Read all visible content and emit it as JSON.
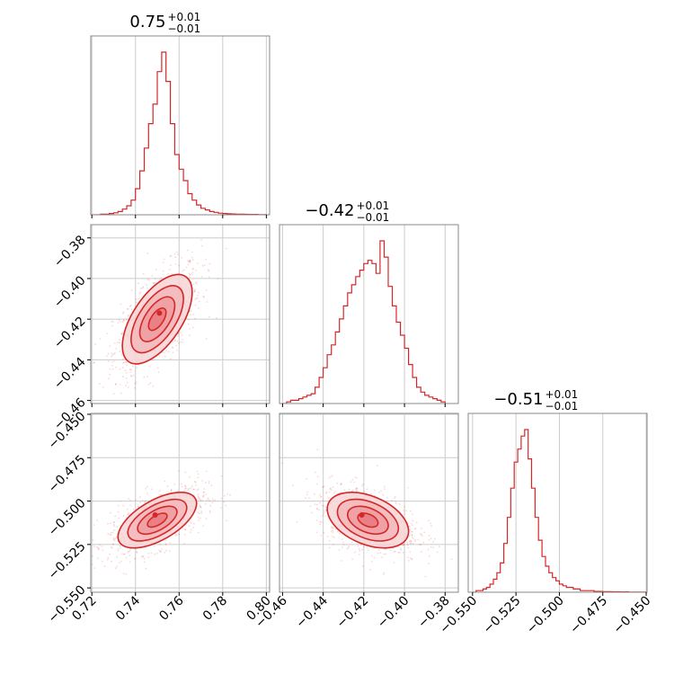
{
  "chart_data": {
    "type": "corner",
    "color": "#d62728",
    "fill_colors": [
      "#f6d3d4",
      "#ef9fa3"
    ],
    "grid": true,
    "parameters": [
      {
        "title": {
          "median": "0.75",
          "upper": "+0.01",
          "lower": "−0.01"
        },
        "ticks": [
          0.72,
          0.74,
          0.76,
          0.78,
          0.8
        ],
        "tick_labels": [
          "0.72",
          "0.74",
          "0.76",
          "0.78",
          "0.80"
        ],
        "range": [
          0.7195,
          0.8015
        ],
        "hist": [
          [
            0.72,
            0.0
          ],
          [
            0.722,
            0.0
          ],
          [
            0.724,
            0.004
          ],
          [
            0.726,
            0.004
          ],
          [
            0.728,
            0.008
          ],
          [
            0.73,
            0.012
          ],
          [
            0.732,
            0.02
          ],
          [
            0.734,
            0.035
          ],
          [
            0.736,
            0.055
          ],
          [
            0.738,
            0.09
          ],
          [
            0.74,
            0.16
          ],
          [
            0.742,
            0.27
          ],
          [
            0.744,
            0.41
          ],
          [
            0.746,
            0.56
          ],
          [
            0.748,
            0.68
          ],
          [
            0.75,
            0.88
          ],
          [
            0.752,
            1.0
          ],
          [
            0.754,
            0.82
          ],
          [
            0.756,
            0.56
          ],
          [
            0.758,
            0.37
          ],
          [
            0.76,
            0.28
          ],
          [
            0.762,
            0.21
          ],
          [
            0.764,
            0.13
          ],
          [
            0.766,
            0.09
          ],
          [
            0.768,
            0.06
          ],
          [
            0.77,
            0.04
          ],
          [
            0.772,
            0.03
          ],
          [
            0.774,
            0.02
          ],
          [
            0.776,
            0.015
          ],
          [
            0.778,
            0.01
          ],
          [
            0.78,
            0.008
          ],
          [
            0.782,
            0.006
          ],
          [
            0.784,
            0.005
          ],
          [
            0.786,
            0.004
          ],
          [
            0.788,
            0.004
          ],
          [
            0.79,
            0.003
          ],
          [
            0.792,
            0.002
          ],
          [
            0.794,
            0.002
          ],
          [
            0.796,
            0.001
          ],
          [
            0.798,
            0.001
          ],
          [
            0.8,
            0.0
          ]
        ]
      },
      {
        "title": {
          "median": "−0.42",
          "upper": "+0.01",
          "lower": "−0.01"
        },
        "ticks": [
          -0.46,
          -0.44,
          -0.42,
          -0.4,
          -0.38
        ],
        "tick_labels": [
          "−0.46",
          "−0.44",
          "−0.42",
          "−0.40",
          "−0.38"
        ],
        "range": [
          -0.4615,
          -0.3735
        ],
        "hist": [
          [
            -0.46,
            0.0
          ],
          [
            -0.458,
            0.01
          ],
          [
            -0.456,
            0.02
          ],
          [
            -0.454,
            0.02
          ],
          [
            -0.452,
            0.03
          ],
          [
            -0.45,
            0.04
          ],
          [
            -0.448,
            0.05
          ],
          [
            -0.446,
            0.06
          ],
          [
            -0.444,
            0.1
          ],
          [
            -0.442,
            0.16
          ],
          [
            -0.44,
            0.22
          ],
          [
            -0.438,
            0.3
          ],
          [
            -0.436,
            0.36
          ],
          [
            -0.434,
            0.44
          ],
          [
            -0.432,
            0.52
          ],
          [
            -0.43,
            0.6
          ],
          [
            -0.428,
            0.68
          ],
          [
            -0.426,
            0.73
          ],
          [
            -0.424,
            0.78
          ],
          [
            -0.422,
            0.82
          ],
          [
            -0.42,
            0.86
          ],
          [
            -0.418,
            0.88
          ],
          [
            -0.416,
            0.86
          ],
          [
            -0.414,
            0.8
          ],
          [
            -0.412,
            1.0
          ],
          [
            -0.41,
            0.9
          ],
          [
            -0.408,
            0.72
          ],
          [
            -0.406,
            0.6
          ],
          [
            -0.404,
            0.5
          ],
          [
            -0.402,
            0.42
          ],
          [
            -0.4,
            0.34
          ],
          [
            -0.398,
            0.24
          ],
          [
            -0.396,
            0.16
          ],
          [
            -0.394,
            0.1
          ],
          [
            -0.392,
            0.07
          ],
          [
            -0.39,
            0.05
          ],
          [
            -0.388,
            0.04
          ],
          [
            -0.386,
            0.03
          ],
          [
            -0.384,
            0.02
          ],
          [
            -0.382,
            0.01
          ],
          [
            -0.38,
            0.0
          ]
        ]
      },
      {
        "title": {
          "median": "−0.51",
          "upper": "+0.01",
          "lower": "−0.01"
        },
        "ticks": [
          -0.55,
          -0.525,
          -0.5,
          -0.475,
          -0.45
        ],
        "tick_labels": [
          "−0.550",
          "−0.525",
          "−0.500",
          "−0.475",
          "−0.450"
        ],
        "range": [
          -0.5525,
          -0.4495
        ],
        "hist": [
          [
            -0.55,
            0.0
          ],
          [
            -0.548,
            0.01
          ],
          [
            -0.546,
            0.01
          ],
          [
            -0.544,
            0.02
          ],
          [
            -0.542,
            0.03
          ],
          [
            -0.54,
            0.05
          ],
          [
            -0.538,
            0.08
          ],
          [
            -0.536,
            0.12
          ],
          [
            -0.534,
            0.18
          ],
          [
            -0.532,
            0.3
          ],
          [
            -0.53,
            0.46
          ],
          [
            -0.528,
            0.64
          ],
          [
            -0.526,
            0.8
          ],
          [
            -0.524,
            0.88
          ],
          [
            -0.522,
            0.96
          ],
          [
            -0.52,
            1.0
          ],
          [
            -0.518,
            0.82
          ],
          [
            -0.516,
            0.64
          ],
          [
            -0.514,
            0.46
          ],
          [
            -0.512,
            0.32
          ],
          [
            -0.51,
            0.22
          ],
          [
            -0.508,
            0.16
          ],
          [
            -0.506,
            0.12
          ],
          [
            -0.504,
            0.09
          ],
          [
            -0.502,
            0.07
          ],
          [
            -0.5,
            0.05
          ],
          [
            -0.498,
            0.04
          ],
          [
            -0.496,
            0.03
          ],
          [
            -0.494,
            0.03
          ],
          [
            -0.492,
            0.02
          ],
          [
            -0.49,
            0.02
          ],
          [
            -0.488,
            0.01
          ],
          [
            -0.486,
            0.01
          ],
          [
            -0.484,
            0.01
          ],
          [
            -0.482,
            0.01
          ],
          [
            -0.48,
            0.005
          ],
          [
            -0.475,
            0.004
          ],
          [
            -0.47,
            0.003
          ],
          [
            -0.465,
            0.002
          ],
          [
            -0.46,
            0.001
          ],
          [
            -0.45,
            0.0
          ]
        ]
      }
    ],
    "pairs": [
      {
        "x_param": 0,
        "y_param": 1,
        "center": [
          0.75,
          -0.42
        ],
        "sigma": [
          0.008,
          0.011
        ],
        "rho": 0.6,
        "sigma_levels": [
          2.0,
          1.5,
          1.0,
          0.5
        ],
        "mode": [
          0.751,
          -0.417
        ]
      },
      {
        "x_param": 0,
        "y_param": 2,
        "center": [
          0.75,
          -0.511
        ],
        "sigma": [
          0.009,
          0.008
        ],
        "rho": 0.6,
        "sigma_levels": [
          2.0,
          1.5,
          1.0,
          0.5
        ],
        "mode": [
          0.749,
          -0.508
        ]
      },
      {
        "x_param": 1,
        "y_param": 2,
        "center": [
          -0.418,
          -0.511
        ],
        "sigma": [
          0.01,
          0.008
        ],
        "rho": -0.4,
        "sigma_levels": [
          2.0,
          1.5,
          1.0,
          0.5
        ],
        "mode": [
          -0.421,
          -0.508
        ]
      }
    ]
  }
}
